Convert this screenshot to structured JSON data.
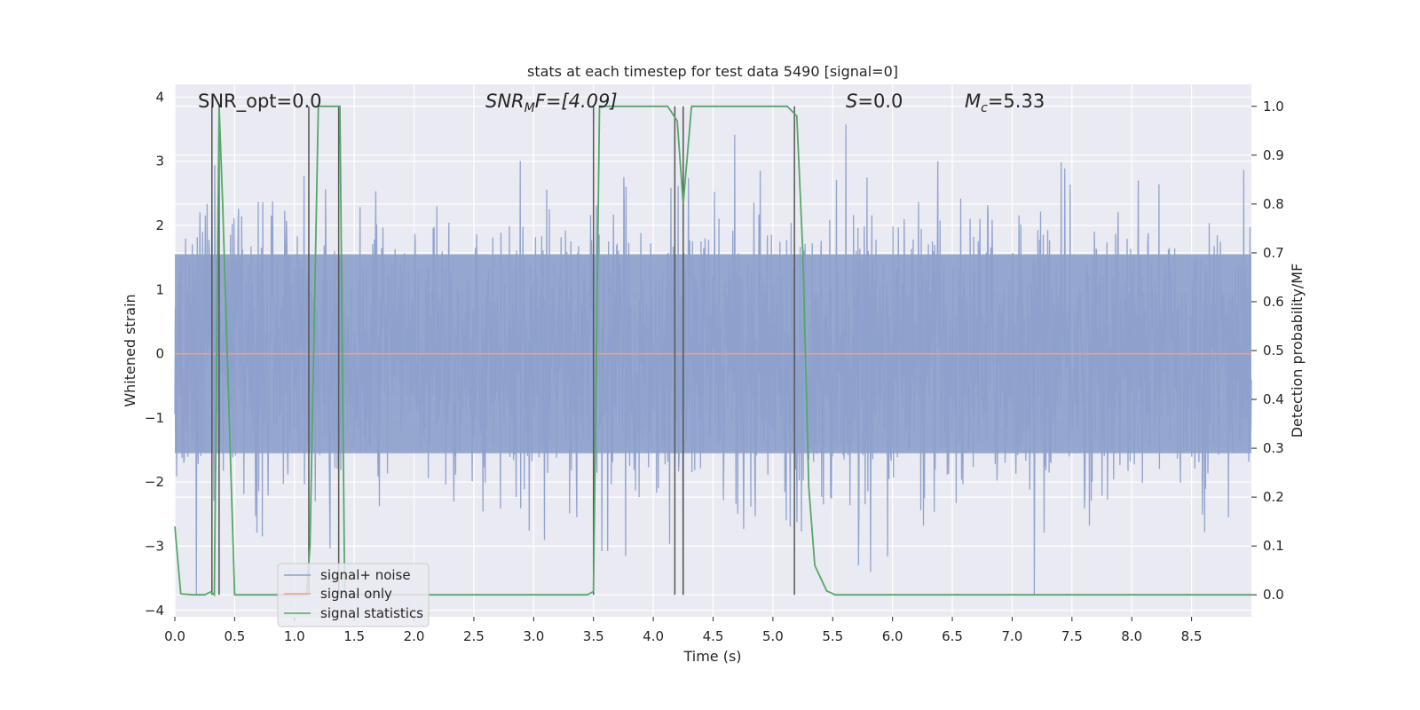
{
  "chart_data": {
    "type": "line",
    "title": "stats at each timestep for test data 5490 [signal=0]",
    "xlabel": "Time (s)",
    "ylabel_left": "Whitened strain",
    "ylabel_right": "Detection probability/MF",
    "xlim": [
      0.0,
      9.0
    ],
    "ylim_left": [
      -4.1,
      4.2
    ],
    "ylim_right": [
      -0.045,
      1.045
    ],
    "x_ticks": [
      "0.0",
      "0.5",
      "1.0",
      "1.5",
      "2.0",
      "2.5",
      "3.0",
      "3.5",
      "4.0",
      "4.5",
      "5.0",
      "5.5",
      "6.0",
      "6.5",
      "7.0",
      "7.5",
      "8.0",
      "8.5"
    ],
    "y_ticks_left": [
      "−4",
      "−3",
      "−2",
      "−1",
      "0",
      "1",
      "2",
      "3",
      "4"
    ],
    "y_ticks_right": [
      "0.0",
      "0.1",
      "0.2",
      "0.3",
      "0.4",
      "0.5",
      "0.6",
      "0.7",
      "0.8",
      "0.9",
      "1.0"
    ],
    "grid": true,
    "legend_placement": "lower-left",
    "annotations": {
      "snr_opt": "SNR_opt=0.0",
      "snr_mf_main": "SNR",
      "snr_mf_sub": "M",
      "snr_mf_tail": "F=[4.09]",
      "s_main": "S",
      "s_tail": "=0.0",
      "mc_main": "M",
      "mc_sub": "c",
      "mc_tail": "=5.33"
    },
    "series": [
      {
        "name": "signal+ noise",
        "color": "#8da0cb",
        "style": "dense noise, approx within [-2.3, 2.3] with spikes to about ±3.8",
        "values": []
      },
      {
        "name": "signal only",
        "color": "#e8a294",
        "x": [
          0.0,
          9.0
        ],
        "y": [
          0.0,
          0.0
        ]
      },
      {
        "name": "signal statistics",
        "color": "#55a868",
        "axis": "right",
        "x": [
          0.0,
          0.05,
          0.15,
          0.25,
          0.3,
          0.33,
          0.37,
          0.4,
          0.5,
          1.05,
          1.1,
          1.13,
          1.2,
          1.25,
          1.38,
          1.42,
          1.48,
          3.45,
          3.5,
          3.55,
          3.6,
          4.12,
          4.2,
          4.25,
          4.32,
          5.12,
          5.2,
          5.25,
          5.3,
          5.35,
          5.45,
          5.52,
          9.0
        ],
        "y": [
          0.14,
          0.002,
          0.0,
          0.0,
          0.006,
          0.0,
          1.0,
          0.8,
          0.0,
          0.0,
          0.0,
          0.1,
          1.0,
          1.0,
          1.0,
          0.0,
          0.0,
          0.0,
          0.007,
          1.0,
          1.0,
          1.0,
          0.97,
          0.8,
          1.0,
          1.0,
          0.98,
          0.7,
          0.22,
          0.06,
          0.008,
          0.0,
          0.0
        ]
      }
    ],
    "vertical_markers_x": [
      0.31,
      0.37,
      1.12,
      1.37,
      3.5,
      4.18,
      4.25,
      5.18
    ],
    "background_color": "#eaeaf2",
    "marker_color": "#555555"
  }
}
